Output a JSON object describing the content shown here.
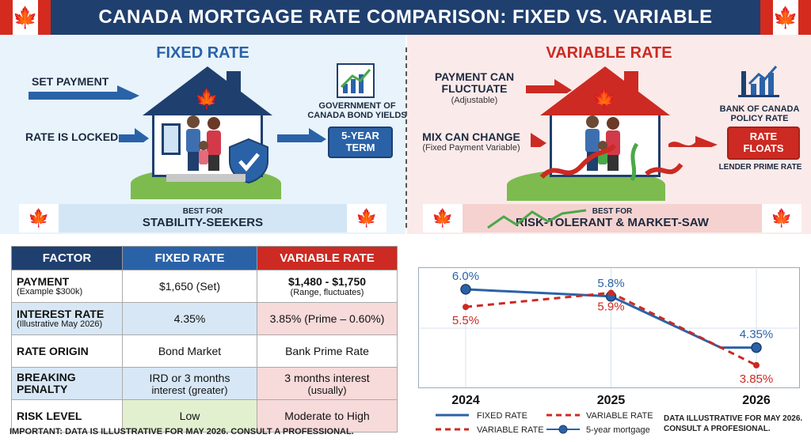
{
  "header": {
    "title": "CANADA MORTGAGE RATE COMPARISON: FIXED VS. VARIABLE"
  },
  "fixed_panel": {
    "title": "FIXED RATE",
    "set_payment": "SET PAYMENT",
    "rate_locked": "RATE IS LOCKED",
    "source_label": "GOVERNMENT OF CANADA BOND YIELDS",
    "term_box": "5-YEAR TERM",
    "banner_small": "BEST FOR",
    "banner_big": "STABILITY-SEEKERS"
  },
  "variable_panel": {
    "title": "VARIABLE RATE",
    "payment_line1": "PAYMENT CAN",
    "payment_line2": "FLUCTUATE",
    "payment_sub": "(Adjustable)",
    "mix_line": "MIX CAN CHANGE",
    "mix_sub": "(Fixed Payment Variable)",
    "source_label": "BANK OF CANADA POLICY RATE",
    "float_box": "RATE FLOATS",
    "prime_label": "LENDER PRIME RATE",
    "banner_small": "BEST FOR",
    "banner_big": "RISK-TOLERANT & MARKET-SAW"
  },
  "table": {
    "headers": [
      "FACTOR",
      "FIXED RATE",
      "VARIABLE RATE"
    ],
    "rows": [
      {
        "factor": "PAYMENT",
        "factor_sub": "(Example $300k)",
        "fixed": "$1,650 (Set)",
        "fixed_sub": "",
        "variable": "$1,480 - $1,750",
        "variable_sub": "(Range, fluctuates)"
      },
      {
        "factor": "INTEREST RATE",
        "factor_sub": "(Illustrative May 2026)",
        "fixed": "4.35%",
        "fixed_sub": "",
        "variable": "3.85% (Prime – 0.60%)",
        "variable_sub": ""
      },
      {
        "factor": "RATE ORIGIN",
        "factor_sub": "",
        "fixed": "Bond Market",
        "fixed_sub": "",
        "variable": "Bank Prime Rate",
        "variable_sub": ""
      },
      {
        "factor": "BREAKING PENALTY",
        "factor_sub": "",
        "fixed": "IRD or 3 months",
        "fixed_sub": "interest (greater)",
        "variable": "3 months interest",
        "variable_sub": "(usually)"
      },
      {
        "factor": "RISK LEVEL",
        "factor_sub": "",
        "fixed": "Low",
        "fixed_sub": "",
        "variable": "Moderate to High",
        "variable_sub": ""
      }
    ],
    "footnote": "IMPORTANT: DATA IS ILLUSTRATIVE FOR MAY 2026. CONSULT A PROFESSIONAL."
  },
  "chart_data": {
    "type": "line",
    "x": [
      "2024",
      "2025",
      "2026"
    ],
    "series": [
      {
        "name": "FIXED RATE",
        "values": [
          6.0,
          5.8,
          4.35
        ],
        "labels": [
          "6.0%",
          "5.8%",
          "4.35%"
        ],
        "color": "#2a62a8"
      },
      {
        "name": "VARIABLE RATE",
        "values": [
          5.5,
          5.9,
          3.85
        ],
        "labels": [
          "5.5%",
          "5.9%",
          "3.85%"
        ],
        "color": "#cc2a22"
      }
    ],
    "ylim": [
      3.4,
      6.4
    ],
    "grid": true
  },
  "legend": {
    "fixed": "FIXED RATE",
    "variable_a": "VARIABLE RATE",
    "variable_b": "VARIABLE RATE",
    "five_year": "5-year mortgage"
  },
  "disclaimer": {
    "line1": "DATA ILLUSTRATIVE FOR MAY 2026.",
    "line2": "CONSULT A PROFESIONAL."
  },
  "colors": {
    "navy": "#1f3f6e",
    "blue": "#2a62a8",
    "red": "#cc2a22",
    "green": "#7dbb4f"
  }
}
